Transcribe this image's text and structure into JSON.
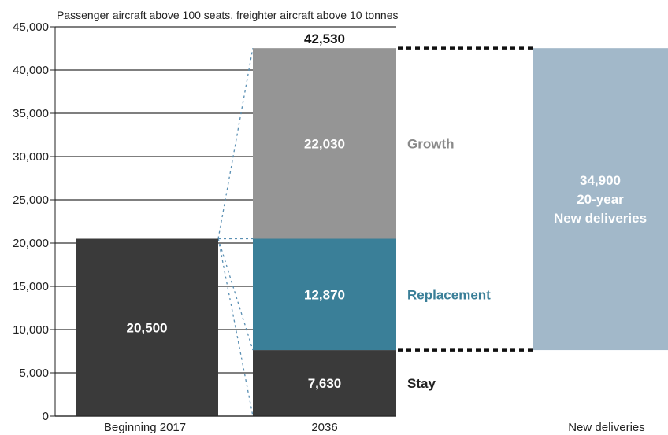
{
  "chart_data": {
    "type": "bar",
    "subtitle": "Passenger aircraft above 100 seats, freighter aircraft above 10 tonnes",
    "categories": [
      "Beginning 2017",
      "2036",
      "New deliveries"
    ],
    "ylim": [
      0,
      45000
    ],
    "yticks": [
      "0",
      "5,000",
      "10,000",
      "15,000",
      "20,000",
      "25,000",
      "30,000",
      "35,000",
      "40,000",
      "45,000"
    ],
    "grid": true,
    "series": [
      {
        "name": "",
        "category": "Beginning 2017",
        "base": 0,
        "value": 20500,
        "label": "20,500",
        "color": "#3a3a3a"
      },
      {
        "name": "Stay",
        "category": "2036",
        "base": 0,
        "value": 7630,
        "label": "7,630",
        "color": "#3a3a3a",
        "label_color": "#222222"
      },
      {
        "name": "Replacement",
        "category": "2036",
        "base": 7630,
        "value": 12870,
        "label": "12,870",
        "color": "#3a7f98",
        "label_color": "#3a7f98"
      },
      {
        "name": "Growth",
        "category": "2036",
        "base": 20500,
        "value": 22030,
        "label": "22,030",
        "color": "#959595",
        "label_color": "#8a8a8a"
      },
      {
        "name": "",
        "category": "New deliveries",
        "base": 7630,
        "value": 34900,
        "label_lines": [
          "34,900",
          "20-year",
          "New deliveries"
        ],
        "color": "#a2b8c9"
      }
    ],
    "total": {
      "category": "2036",
      "value": 42530,
      "label": "42,530"
    },
    "colors": {
      "dark": "#3a3a3a",
      "replacement": "#3a7f98",
      "growth": "#959595",
      "deliveries": "#a2b8c9",
      "dotted": "#111111",
      "dashed_link": "#5a8fb3"
    }
  }
}
